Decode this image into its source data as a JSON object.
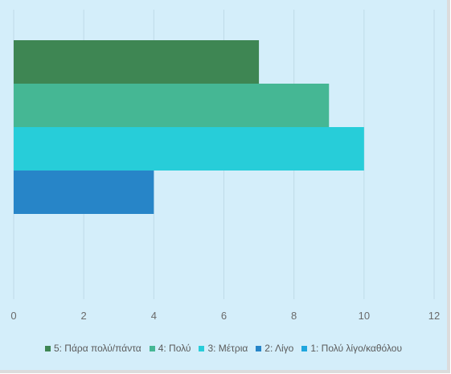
{
  "chart_data": {
    "type": "bar",
    "orientation": "horizontal",
    "title": "",
    "xlabel": "",
    "ylabel": "",
    "xlim": [
      0,
      12
    ],
    "x_ticks": [
      "0",
      "2",
      "4",
      "6",
      "8",
      "10",
      "12"
    ],
    "grid": true,
    "legend_position": "bottom",
    "series": [
      {
        "name": "5: Πάρα πολύ/πάντα",
        "value": 7,
        "color": "#3e8653"
      },
      {
        "name": "4: Πολύ",
        "value": 9,
        "color": "#45b794"
      },
      {
        "name": "3: Μέτρια",
        "value": 10,
        "color": "#27cdd9"
      },
      {
        "name": "2: Λίγο",
        "value": 4,
        "color": "#2785c8"
      },
      {
        "name": "1: Πολύ λίγο/καθόλου",
        "value": 0,
        "color": "#1fa6de"
      }
    ]
  }
}
